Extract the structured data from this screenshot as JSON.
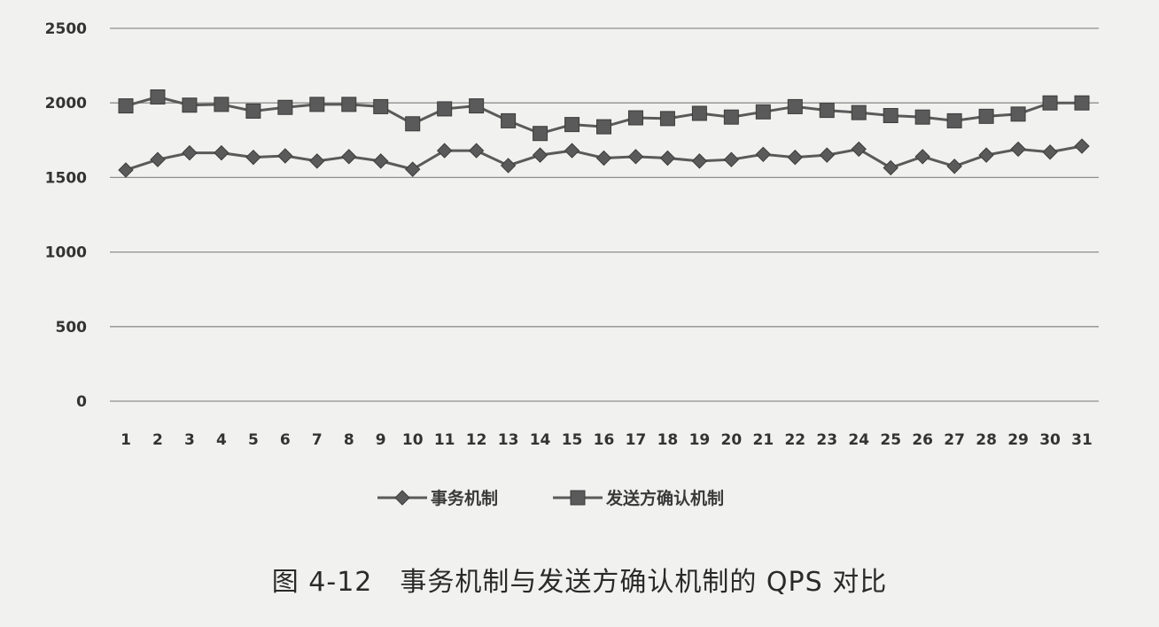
{
  "chart_data": {
    "type": "line",
    "categories": [
      "1",
      "2",
      "3",
      "4",
      "5",
      "6",
      "7",
      "8",
      "9",
      "10",
      "11",
      "12",
      "13",
      "14",
      "15",
      "16",
      "17",
      "18",
      "19",
      "20",
      "21",
      "22",
      "23",
      "24",
      "25",
      "26",
      "27",
      "28",
      "29",
      "30",
      "31"
    ],
    "yticks": [
      "0",
      "500",
      "1000",
      "1500",
      "2000",
      "2500"
    ],
    "ylim": [
      0,
      2500
    ],
    "grid": true,
    "legend_position": "bottom",
    "series": [
      {
        "name": "事务机制",
        "marker": "diamond",
        "color": "#5a5a5a",
        "values": [
          1550,
          1620,
          1665,
          1665,
          1635,
          1645,
          1610,
          1640,
          1610,
          1555,
          1680,
          1680,
          1580,
          1650,
          1680,
          1630,
          1640,
          1630,
          1610,
          1620,
          1655,
          1635,
          1650,
          1690,
          1565,
          1640,
          1575,
          1650,
          1690,
          1670,
          1710
        ]
      },
      {
        "name": "发送方确认机制",
        "marker": "square",
        "color": "#5a5a5a",
        "values": [
          1980,
          2040,
          1985,
          1990,
          1945,
          1970,
          1990,
          1990,
          1975,
          1860,
          1960,
          1980,
          1880,
          1795,
          1855,
          1840,
          1900,
          1895,
          1930,
          1905,
          1940,
          1975,
          1950,
          1935,
          1915,
          1905,
          1880,
          1910,
          1925,
          2000,
          2000
        ]
      }
    ]
  },
  "caption": "图 4-12　事务机制与发送方确认机制的 QPS 对比"
}
